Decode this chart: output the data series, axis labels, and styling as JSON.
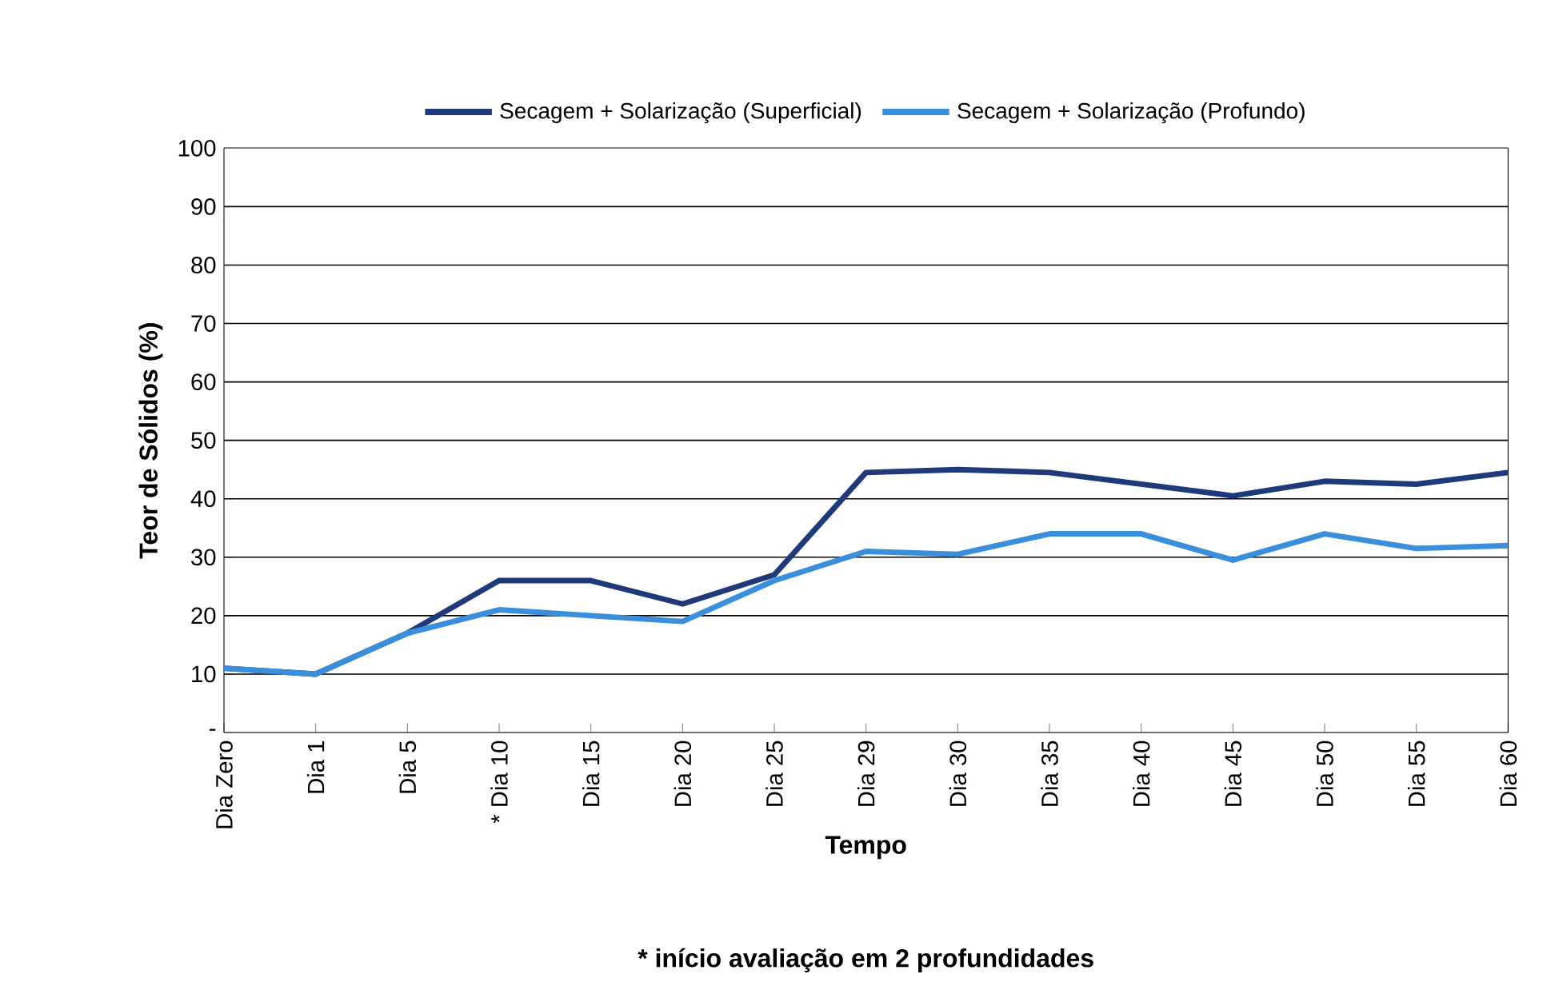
{
  "chart_data": {
    "type": "line",
    "xlabel": "Tempo",
    "ylabel": "Teor de Sólidos (%)",
    "annotations": [
      "* início avaliação em 2 profundidades"
    ],
    "categories": [
      "Dia Zero",
      "Dia 1",
      "Dia 5",
      "* Dia 10",
      "Dia 15",
      "Dia 20",
      "Dia 25",
      "Dia 29",
      "Dia 30",
      "Dia 35",
      "Dia 40",
      "Dia 45",
      "Dia 50",
      "Dia 55",
      "Dia 60"
    ],
    "series": [
      {
        "name": "Secagem + Solarização (Superficial)",
        "color": "#1f3a7a",
        "values": [
          11,
          10,
          17,
          26,
          26,
          22,
          27,
          44.5,
          45,
          44.5,
          42.5,
          40.5,
          43,
          42.5,
          44.5
        ]
      },
      {
        "name": "Secagem + Solarização (Profundo)",
        "color": "#3a8fdc",
        "values": [
          11,
          10,
          17,
          21,
          20,
          19,
          26,
          31,
          30.5,
          34,
          34,
          29.5,
          34,
          31.5,
          32
        ]
      }
    ],
    "ylim": [
      0,
      100
    ],
    "yticks": [
      {
        "value": 0,
        "label": "-"
      },
      10,
      20,
      30,
      40,
      50,
      60,
      70,
      80,
      90,
      100
    ],
    "grid": "y",
    "legend": "top",
    "marker": "none",
    "line_style": "solid"
  }
}
